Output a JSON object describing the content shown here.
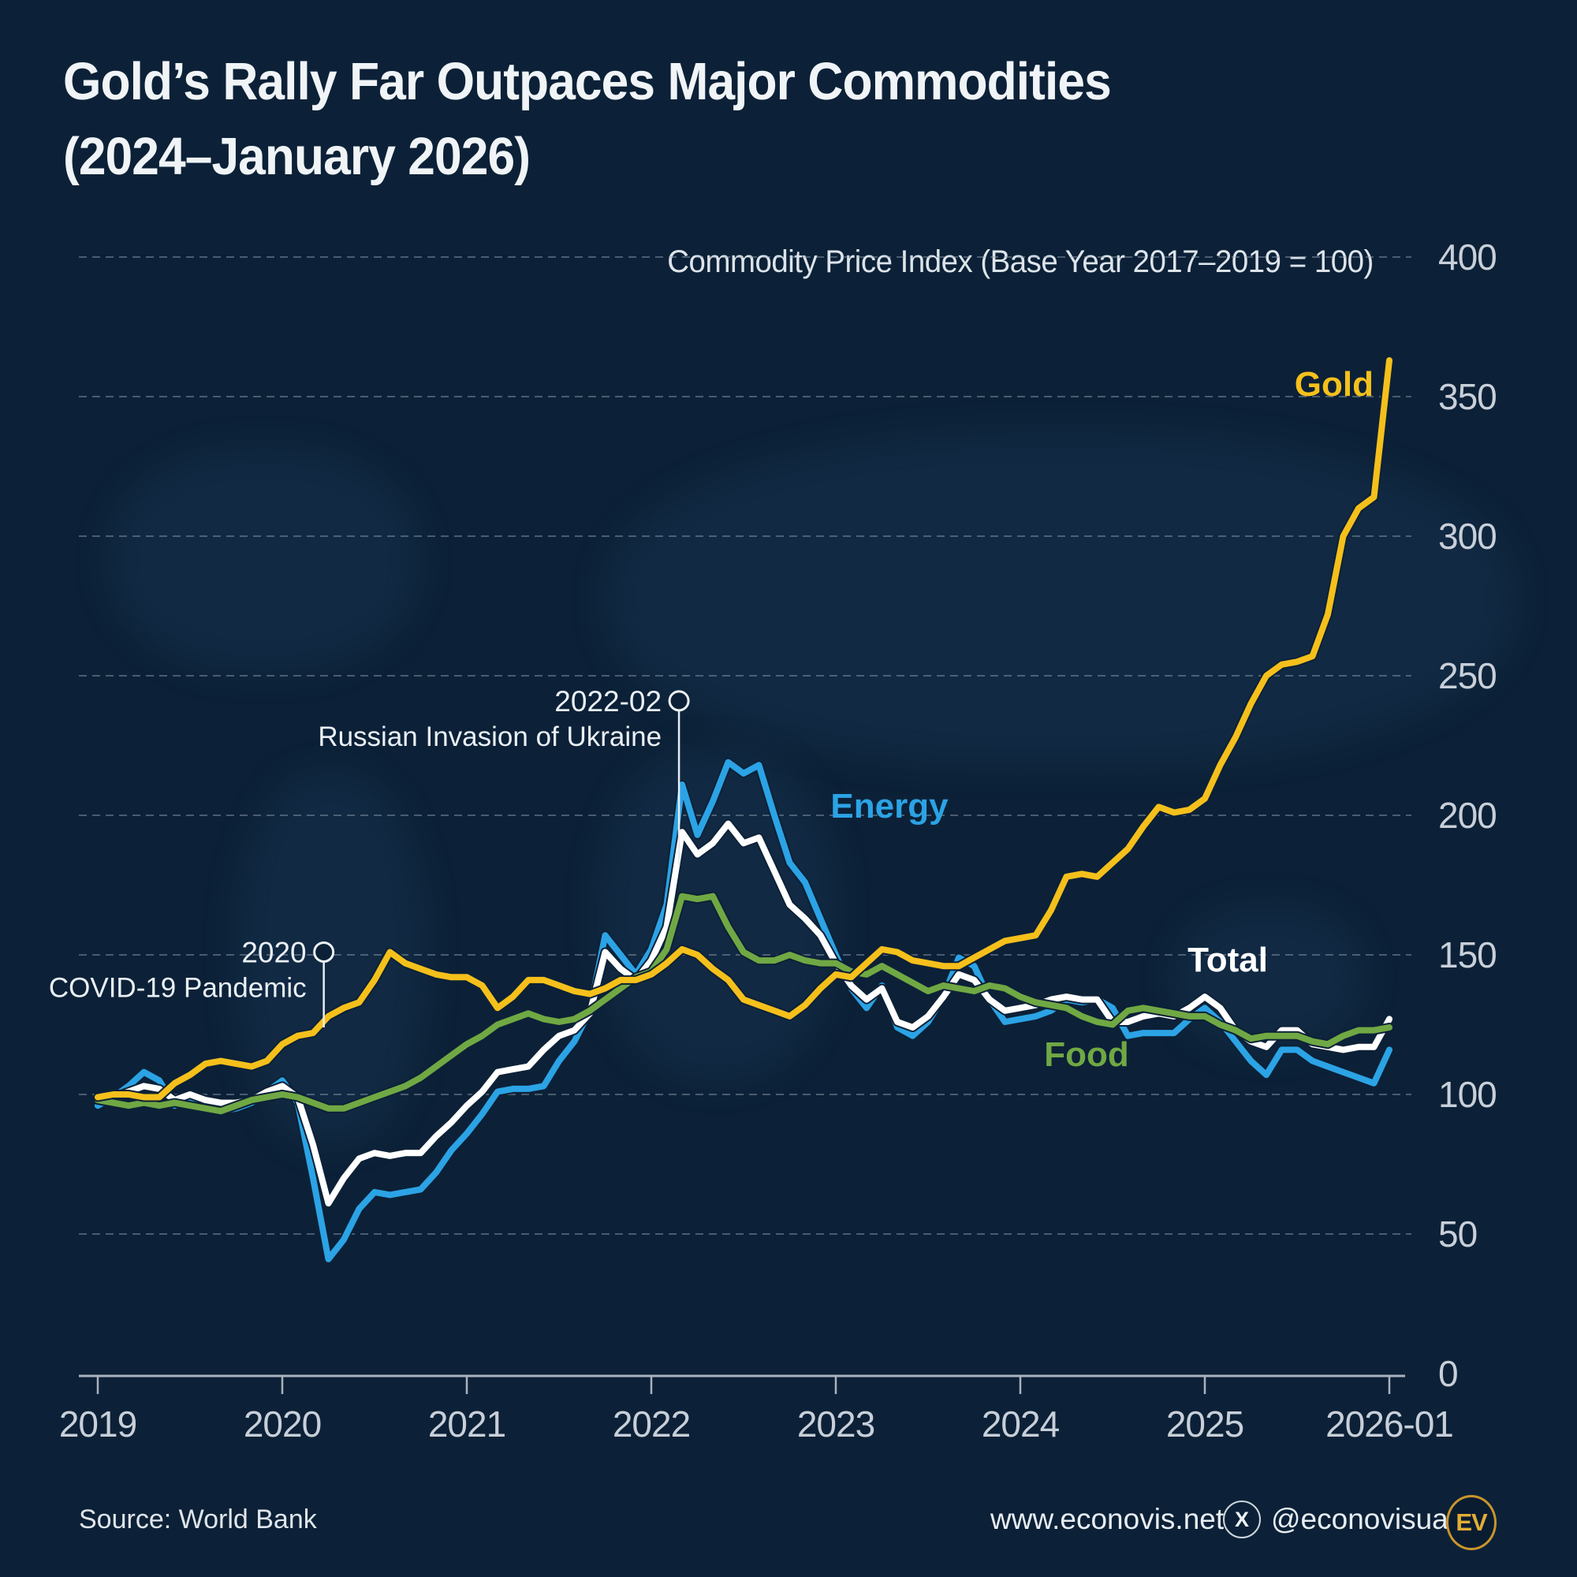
{
  "title": {
    "line1": "Gold’s Rally Far Outpaces Major Commodities",
    "line2": "(2024–January 2026)"
  },
  "subtitle": "Commodity Price Index (Base Year 2017–2019 = 100)",
  "chart_data": {
    "type": "line",
    "frequency": "monthly",
    "x_start": "2019-01",
    "x_end": "2026-01",
    "x_tick_labels": [
      "2019",
      "2020",
      "2021",
      "2022",
      "2023",
      "2024",
      "2025",
      "2026-01"
    ],
    "x_tick_month_index": [
      0,
      12,
      24,
      36,
      48,
      60,
      72,
      84
    ],
    "y_ticks": [
      0,
      50,
      100,
      150,
      200,
      250,
      300,
      350,
      400
    ],
    "ylim": [
      0,
      400
    ],
    "grid": "dashed-horizontal",
    "series": [
      {
        "name": "energy",
        "label": "Energy",
        "color": "#2ba3e5",
        "values": [
          96,
          99,
          103,
          108,
          105,
          96,
          99,
          96,
          94,
          95,
          97,
          101,
          105,
          97,
          70,
          41,
          48,
          59,
          65,
          64,
          65,
          66,
          72,
          80,
          86,
          93,
          101,
          102,
          102,
          103,
          112,
          119,
          130,
          157,
          150,
          143,
          152,
          168,
          211,
          193,
          205,
          219,
          215,
          218,
          200,
          183,
          176,
          163,
          150,
          138,
          131,
          139,
          124,
          121,
          126,
          135,
          149,
          146,
          134,
          126,
          127,
          128,
          130,
          134,
          133,
          134,
          131,
          121,
          122,
          122,
          122,
          127,
          131,
          126,
          119,
          112,
          107,
          116,
          116,
          112,
          110,
          108,
          106,
          104,
          116
        ]
      },
      {
        "name": "total",
        "label": "Total",
        "color": "#ffffff",
        "values": [
          98,
          99,
          101,
          103,
          102,
          98,
          100,
          98,
          97,
          97,
          98,
          101,
          103,
          99,
          82,
          61,
          70,
          77,
          79,
          78,
          79,
          79,
          85,
          90,
          96,
          101,
          108,
          109,
          110,
          116,
          121,
          123,
          129,
          151,
          145,
          141,
          148,
          160,
          194,
          186,
          190,
          197,
          190,
          192,
          180,
          168,
          163,
          157,
          147,
          139,
          134,
          138,
          126,
          124,
          128,
          135,
          143,
          141,
          134,
          130,
          131,
          132,
          134,
          135,
          134,
          134,
          126,
          126,
          128,
          129,
          128,
          131,
          135,
          131,
          123,
          119,
          117,
          123,
          123,
          118,
          117,
          116,
          117,
          117,
          127
        ]
      },
      {
        "name": "food",
        "label": "Food",
        "color": "#70a844",
        "values": [
          98,
          97,
          96,
          97,
          96,
          97,
          96,
          95,
          94,
          96,
          98,
          99,
          100,
          99,
          97,
          95,
          95,
          97,
          99,
          101,
          103,
          106,
          110,
          114,
          118,
          121,
          125,
          127,
          129,
          127,
          126,
          127,
          130,
          134,
          138,
          142,
          144,
          152,
          171,
          170,
          171,
          160,
          151,
          148,
          148,
          150,
          148,
          147,
          147,
          144,
          143,
          146,
          143,
          140,
          137,
          139,
          138,
          137,
          139,
          138,
          135,
          133,
          132,
          131,
          128,
          126,
          125,
          130,
          131,
          130,
          129,
          128,
          128,
          125,
          123,
          120,
          121,
          121,
          121,
          119,
          118,
          121,
          123,
          123,
          124
        ]
      },
      {
        "name": "gold",
        "label": "Gold",
        "color": "#f5c01b",
        "values": [
          99,
          100,
          100,
          99,
          99,
          104,
          107,
          111,
          112,
          111,
          110,
          112,
          118,
          121,
          122,
          128,
          131,
          133,
          141,
          151,
          147,
          145,
          143,
          142,
          142,
          139,
          131,
          135,
          141,
          141,
          139,
          137,
          136,
          138,
          141,
          141,
          143,
          147,
          152,
          150,
          145,
          141,
          134,
          132,
          130,
          128,
          132,
          138,
          143,
          142,
          147,
          152,
          151,
          148,
          147,
          146,
          146,
          149,
          152,
          155,
          156,
          157,
          166,
          178,
          179,
          178,
          183,
          188,
          196,
          203,
          201,
          202,
          206,
          218,
          228,
          240,
          250,
          254,
          255,
          257,
          272,
          300,
          310,
          314,
          363
        ]
      }
    ],
    "annotations": [
      {
        "label_line1": "2020",
        "label_line2": "COVID-19 Pandemic",
        "month_index": 14.7,
        "marker_value": 151,
        "pointer_to_value": 124
      },
      {
        "label_line1": "2022-02",
        "label_line2": "Russian Invasion of Ukraine",
        "month_index": 37.8,
        "marker_value": 241,
        "pointer_to_value": 182
      }
    ]
  },
  "footer": {
    "source": "Source: World Bank",
    "website": "www.econovis.net",
    "x_icon": "X",
    "x_handle": "@econovisuals",
    "logo_text": "EV"
  },
  "colors": {
    "background": "#0c2137",
    "gold": "#f5c01b",
    "energy": "#2ba3e5",
    "food": "#70a844",
    "total": "#ffffff",
    "axis_text": "#c8cfd9",
    "gridline": "#9aa5b4",
    "annotation_text": "#eaf0f5"
  }
}
